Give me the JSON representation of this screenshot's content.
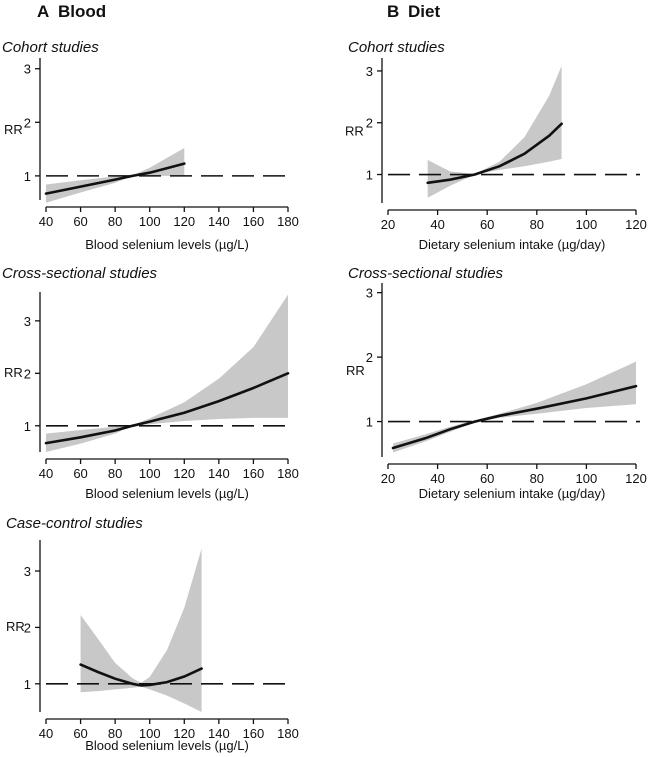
{
  "figure": {
    "panel_a": {
      "letter": "A",
      "name": "Blood"
    },
    "panel_b": {
      "letter": "B",
      "name": "Diet"
    }
  },
  "chart_data": [
    {
      "id": "a1",
      "type": "line",
      "title": "Cohort studies",
      "xlabel": "Blood selenium levels (µg/L)",
      "ylabel": "RR",
      "xlim": [
        40,
        180
      ],
      "ylim": [
        0.55,
        3.2
      ],
      "xticks": [
        40,
        60,
        80,
        100,
        120,
        140,
        160,
        180
      ],
      "yticks": [
        1,
        2,
        3
      ],
      "reference_line": 1,
      "series": [
        {
          "name": "RR",
          "x": [
            40,
            60,
            80,
            90,
            100,
            120
          ],
          "y": [
            0.67,
            0.8,
            0.93,
            1.0,
            1.06,
            1.23
          ],
          "lower": [
            0.5,
            0.69,
            0.87,
            1.0,
            1.0,
            1.0
          ],
          "upper": [
            0.84,
            0.92,
            0.99,
            1.01,
            1.15,
            1.52
          ]
        }
      ]
    },
    {
      "id": "a2",
      "type": "line",
      "title": "Cross-sectional studies",
      "xlabel": "Blood selenium levels (µg/L)",
      "ylabel": "RR",
      "xlim": [
        40,
        180
      ],
      "ylim": [
        0.5,
        3.55
      ],
      "xticks": [
        40,
        60,
        80,
        100,
        120,
        140,
        160,
        180
      ],
      "yticks": [
        1,
        2,
        3
      ],
      "reference_line": 1,
      "series": [
        {
          "name": "RR",
          "x": [
            40,
            60,
            80,
            90,
            100,
            120,
            140,
            160,
            180
          ],
          "y": [
            0.67,
            0.78,
            0.91,
            1.0,
            1.08,
            1.25,
            1.47,
            1.72,
            2.0
          ],
          "lower": [
            0.5,
            0.66,
            0.85,
            1.0,
            1.03,
            1.09,
            1.13,
            1.15,
            1.15
          ],
          "upper": [
            0.85,
            0.92,
            0.98,
            1.01,
            1.14,
            1.45,
            1.9,
            2.5,
            3.5
          ]
        }
      ]
    },
    {
      "id": "a3",
      "type": "line",
      "title": "Case-control studies",
      "xlabel": "Blood selenium levels (µg/L)",
      "ylabel": "RR",
      "xlim": [
        40,
        180
      ],
      "ylim": [
        0.5,
        3.55
      ],
      "xticks": [
        40,
        60,
        80,
        100,
        120,
        140,
        160,
        180
      ],
      "yticks": [
        1,
        2,
        3
      ],
      "reference_line": 1,
      "series": [
        {
          "name": "RR",
          "x": [
            60,
            70,
            80,
            90,
            95,
            100,
            110,
            120,
            130
          ],
          "y": [
            1.34,
            1.21,
            1.09,
            1.0,
            0.97,
            0.98,
            1.03,
            1.13,
            1.27
          ],
          "lower": [
            0.85,
            0.87,
            0.9,
            0.93,
            0.95,
            0.9,
            0.79,
            0.65,
            0.5
          ],
          "upper": [
            2.22,
            1.8,
            1.37,
            1.1,
            1.02,
            1.12,
            1.6,
            2.35,
            3.4
          ]
        }
      ]
    },
    {
      "id": "b1",
      "type": "line",
      "title": "Cohort studies",
      "xlabel": "Dietary selenium intake (µg/day)",
      "ylabel": "RR",
      "xlim": [
        20,
        120
      ],
      "ylim": [
        0.45,
        3.25
      ],
      "xticks": [
        20,
        40,
        60,
        80,
        100,
        120
      ],
      "yticks": [
        1,
        2,
        3
      ],
      "reference_line": 1,
      "series": [
        {
          "name": "RR",
          "x": [
            36,
            45,
            55,
            65,
            75,
            85,
            90
          ],
          "y": [
            0.84,
            0.9,
            1.0,
            1.16,
            1.4,
            1.75,
            1.98
          ],
          "lower": [
            0.55,
            0.78,
            1.0,
            1.09,
            1.16,
            1.25,
            1.3
          ],
          "upper": [
            1.28,
            1.06,
            1.01,
            1.25,
            1.72,
            2.52,
            3.1
          ]
        }
      ]
    },
    {
      "id": "b2",
      "type": "line",
      "title": "Cross-sectional studies",
      "xlabel": "Dietary selenium intake (µg/day)",
      "ylabel": "RR",
      "xlim": [
        20,
        120
      ],
      "ylim": [
        0.45,
        3.15
      ],
      "xticks": [
        20,
        40,
        60,
        80,
        100,
        120
      ],
      "yticks": [
        1,
        2,
        3
      ],
      "reference_line": 1,
      "series": [
        {
          "name": "RR",
          "x": [
            22,
            35,
            45,
            55,
            65,
            80,
            100,
            120
          ],
          "y": [
            0.59,
            0.74,
            0.88,
            1.0,
            1.09,
            1.2,
            1.36,
            1.55
          ],
          "lower": [
            0.52,
            0.69,
            0.84,
            0.99,
            1.06,
            1.12,
            1.21,
            1.27
          ],
          "upper": [
            0.66,
            0.8,
            0.92,
            1.02,
            1.12,
            1.29,
            1.58,
            1.93
          ]
        }
      ]
    }
  ]
}
